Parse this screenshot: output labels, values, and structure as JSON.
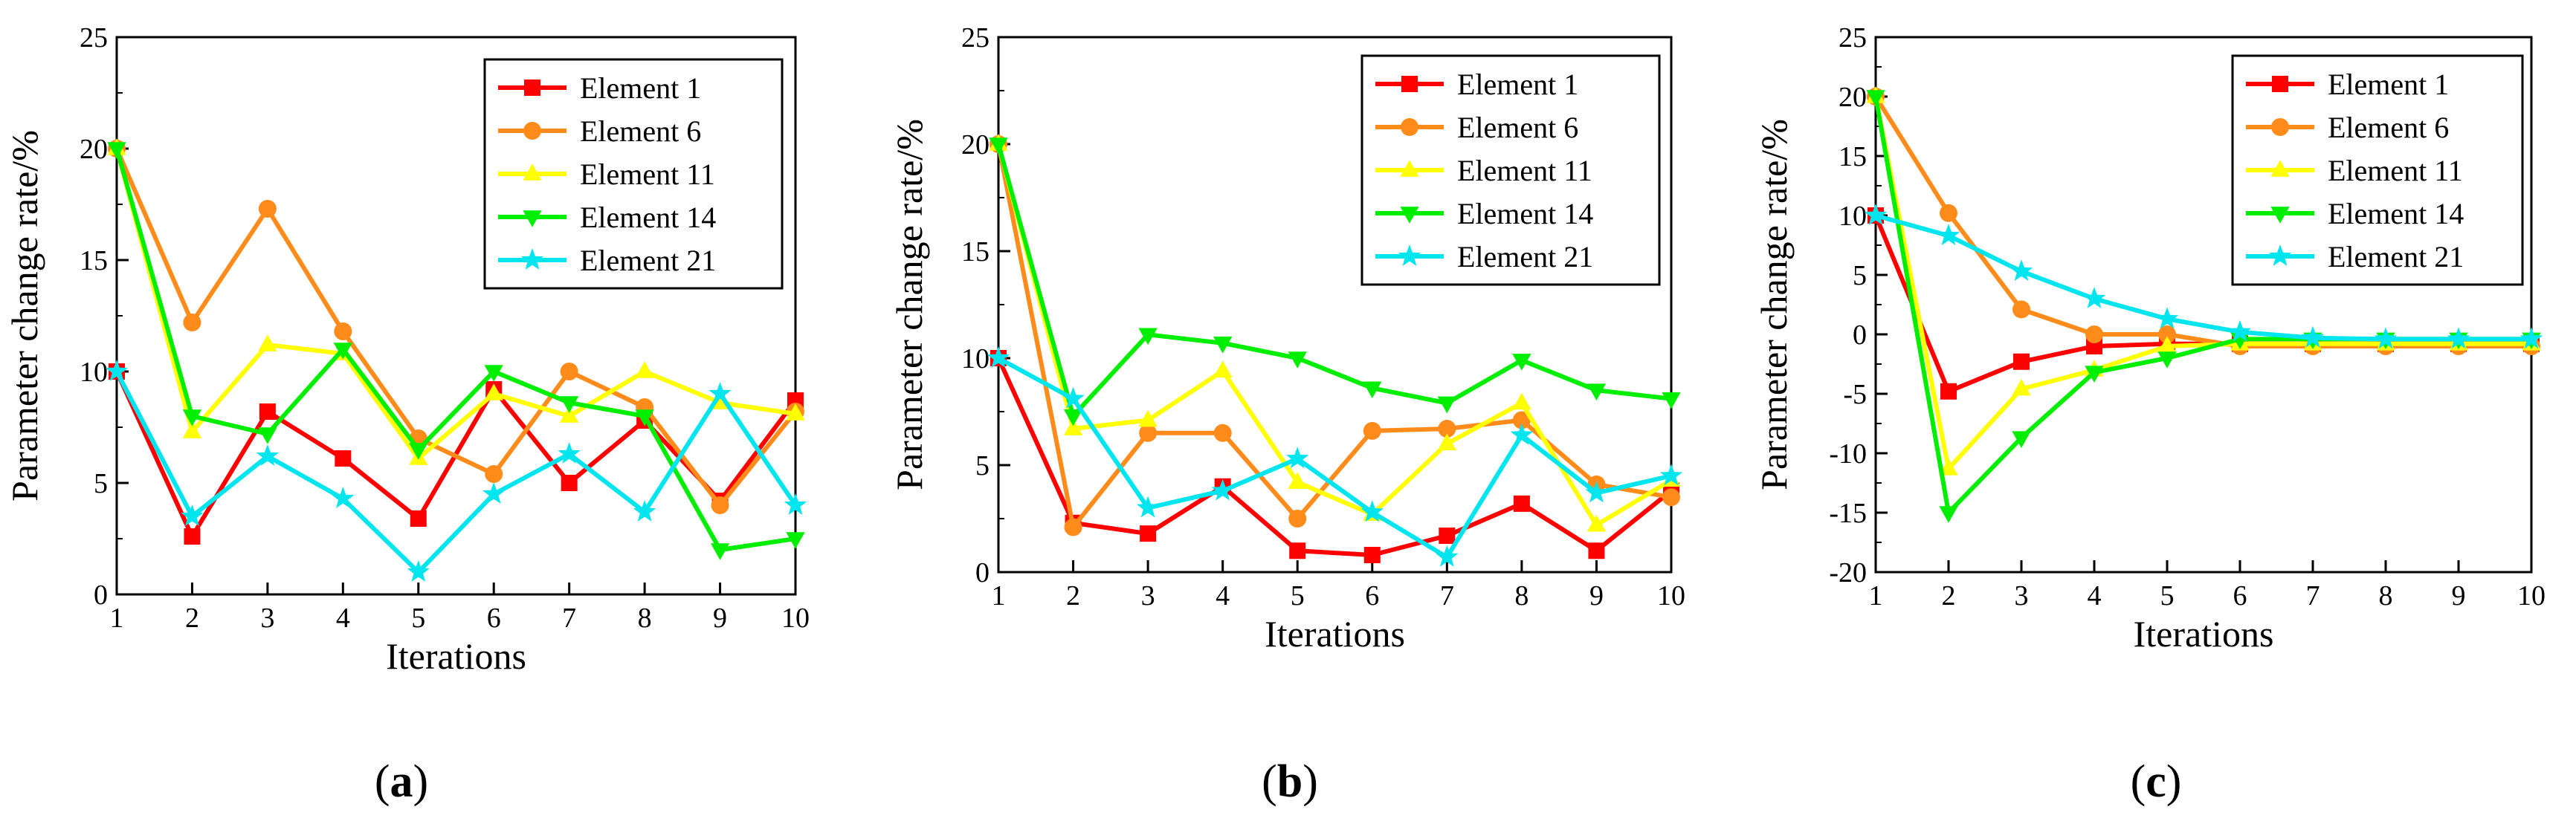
{
  "figure": {
    "panel_labels": [
      {
        "open": "(",
        "letter": "a",
        "close": ")"
      },
      {
        "open": "(",
        "letter": "b",
        "close": ")"
      },
      {
        "open": "(",
        "letter": "c",
        "close": ")"
      }
    ]
  },
  "chart_data": [
    {
      "type": "line",
      "title": "",
      "xlabel": "Iterations",
      "ylabel": "Parameter change rate/%",
      "x": [
        1,
        2,
        3,
        4,
        5,
        6,
        7,
        8,
        9,
        10
      ],
      "xlim": [
        1,
        10
      ],
      "ylim": [
        0,
        25
      ],
      "xticks": [
        1,
        2,
        3,
        4,
        5,
        6,
        7,
        8,
        9,
        10
      ],
      "yticks": [
        0,
        5,
        10,
        15,
        20,
        25
      ],
      "grid": false,
      "legend": "top-right",
      "series": [
        {
          "name": "Element 1",
          "color": "#ff0000",
          "marker": "square",
          "values": [
            10.0,
            2.6,
            8.2,
            6.1,
            3.4,
            9.2,
            5.0,
            7.8,
            4.2,
            8.7
          ]
        },
        {
          "name": "Element 6",
          "color": "#ff8c1a",
          "marker": "circle",
          "values": [
            20.0,
            12.2,
            17.3,
            11.8,
            7.0,
            5.4,
            10.0,
            8.4,
            4.0,
            8.2
          ]
        },
        {
          "name": "Element 11",
          "color": "#ffff00",
          "marker": "triangle-up",
          "values": [
            20.0,
            7.3,
            11.2,
            10.8,
            6.1,
            9.0,
            8.0,
            10.0,
            8.6,
            8.1
          ]
        },
        {
          "name": "Element 14",
          "color": "#00ee00",
          "marker": "triangle-down",
          "values": [
            20.0,
            8.0,
            7.2,
            11.0,
            6.5,
            10.0,
            8.6,
            8.0,
            2.0,
            2.5
          ]
        },
        {
          "name": "Element 21",
          "color": "#00e5ee",
          "marker": "star",
          "values": [
            10.0,
            3.5,
            6.2,
            4.3,
            1.0,
            4.5,
            6.3,
            3.7,
            9.0,
            4.0
          ]
        }
      ]
    },
    {
      "type": "line",
      "title": "",
      "xlabel": "Iterations",
      "ylabel": "Parameter change rate/%",
      "x": [
        1,
        2,
        3,
        4,
        5,
        6,
        7,
        8,
        9,
        10
      ],
      "xlim": [
        1,
        10
      ],
      "ylim": [
        0,
        25
      ],
      "xticks": [
        1,
        2,
        3,
        4,
        5,
        6,
        7,
        8,
        9,
        10
      ],
      "yticks": [
        0,
        5,
        10,
        15,
        20,
        25
      ],
      "grid": false,
      "legend": "top-right",
      "series": [
        {
          "name": "Element 1",
          "color": "#ff0000",
          "marker": "square",
          "values": [
            10.0,
            2.3,
            1.8,
            4.0,
            1.0,
            0.8,
            1.7,
            3.2,
            1.0,
            3.8
          ]
        },
        {
          "name": "Element 6",
          "color": "#ff8c1a",
          "marker": "circle",
          "values": [
            20.0,
            2.1,
            6.5,
            6.5,
            2.5,
            6.6,
            6.7,
            7.1,
            4.1,
            3.5
          ]
        },
        {
          "name": "Element 11",
          "color": "#ffff00",
          "marker": "triangle-up",
          "values": [
            20.0,
            6.7,
            7.1,
            9.4,
            4.2,
            2.7,
            6.0,
            7.9,
            2.2,
            4.3
          ]
        },
        {
          "name": "Element 14",
          "color": "#00ee00",
          "marker": "triangle-down",
          "values": [
            20.0,
            7.3,
            11.1,
            10.7,
            10.0,
            8.6,
            7.9,
            9.9,
            8.5,
            8.1
          ]
        },
        {
          "name": "Element 21",
          "color": "#00e5ee",
          "marker": "star",
          "values": [
            10.0,
            8.1,
            3.0,
            3.8,
            5.3,
            2.8,
            0.7,
            6.4,
            3.7,
            4.5
          ]
        }
      ]
    },
    {
      "type": "line",
      "title": "",
      "xlabel": "Iterations",
      "ylabel": "Parameter change rate/%",
      "x": [
        1,
        2,
        3,
        4,
        5,
        6,
        7,
        8,
        9,
        10
      ],
      "xlim": [
        1,
        10
      ],
      "ylim": [
        -20,
        25
      ],
      "xticks": [
        1,
        2,
        3,
        4,
        5,
        6,
        7,
        8,
        9,
        10
      ],
      "yticks": [
        -20,
        -15,
        -10,
        -5,
        0,
        5,
        10,
        15,
        20,
        25
      ],
      "grid": false,
      "legend": "top-right",
      "series": [
        {
          "name": "Element 1",
          "color": "#ff0000",
          "marker": "square",
          "values": [
            10.0,
            -4.8,
            -2.3,
            -1.0,
            -0.8,
            -0.8,
            -0.8,
            -0.8,
            -0.8,
            -0.8
          ]
        },
        {
          "name": "Element 6",
          "color": "#ff8c1a",
          "marker": "circle",
          "values": [
            20.0,
            10.2,
            2.1,
            0.0,
            0.0,
            -1.0,
            -1.0,
            -1.0,
            -1.0,
            -1.0
          ]
        },
        {
          "name": "Element 11",
          "color": "#ffff00",
          "marker": "triangle-up",
          "values": [
            20.0,
            -11.3,
            -4.6,
            -3.0,
            -1.0,
            -0.8,
            -0.8,
            -0.8,
            -0.8,
            -0.8
          ]
        },
        {
          "name": "Element 14",
          "color": "#00ee00",
          "marker": "triangle-down",
          "values": [
            20.0,
            -15.0,
            -8.7,
            -3.2,
            -2.0,
            -0.4,
            -0.4,
            -0.4,
            -0.4,
            -0.4
          ]
        },
        {
          "name": "Element 21",
          "color": "#00e5ee",
          "marker": "star",
          "values": [
            10.0,
            8.3,
            5.3,
            3.0,
            1.3,
            0.2,
            -0.3,
            -0.4,
            -0.4,
            -0.4
          ]
        }
      ]
    }
  ]
}
